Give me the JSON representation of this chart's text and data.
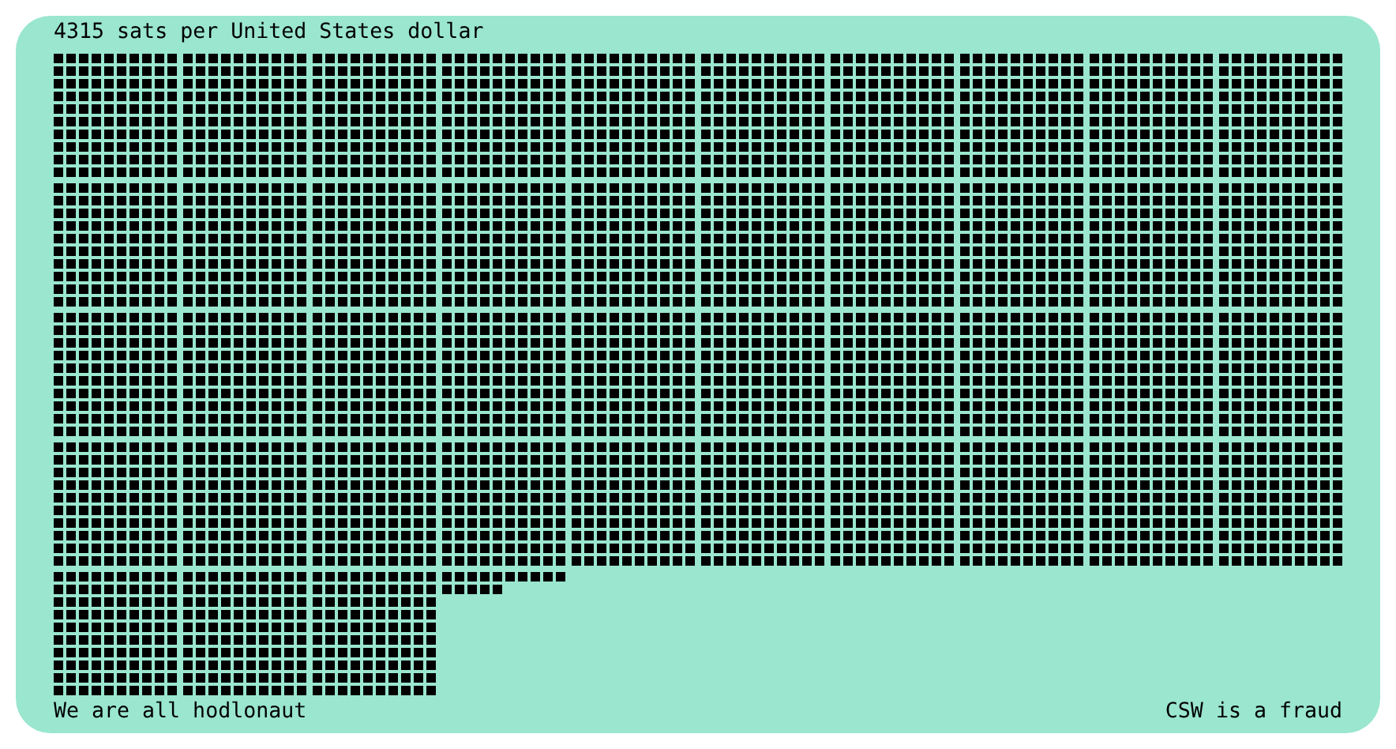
{
  "chart_data": {
    "type": "other",
    "title": "sats per United States dollar",
    "values": [
      4315
    ],
    "data_labels": true,
    "color": "#000000",
    "annotations": [
      "We are all hodlonaut",
      "CSW is a fraud"
    ]
  }
}
